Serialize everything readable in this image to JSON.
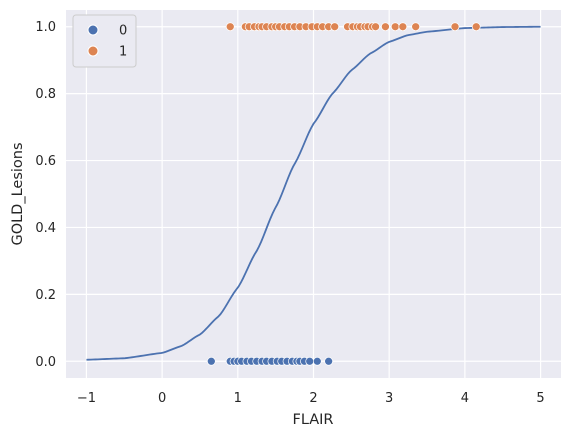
{
  "chart_data": {
    "type": "scatter",
    "xlabel": "FLAIR",
    "ylabel": "GOLD_Lesions",
    "xlim": [
      -1.27,
      5.27
    ],
    "ylim": [
      -0.05,
      1.05
    ],
    "xticks": [
      -1,
      0,
      1,
      2,
      3,
      4,
      5
    ],
    "yticks": [
      0.0,
      0.2,
      0.4,
      0.6,
      0.8,
      1.0
    ],
    "xtick_labels": [
      "−1",
      "0",
      "1",
      "2",
      "3",
      "4",
      "5"
    ],
    "ytick_labels": [
      "0.0",
      "0.2",
      "0.4",
      "0.6",
      "0.8",
      "1.0"
    ],
    "grid": true,
    "background": "#eaeaf2",
    "legend": {
      "placement": "top-left",
      "entries": [
        {
          "label": "0",
          "color": "#4c72b0"
        },
        {
          "label": "1",
          "color": "#dd8452"
        }
      ]
    },
    "series": [
      {
        "name": "0",
        "color": "#4c72b0",
        "points": [
          [
            0.65,
            0
          ],
          [
            0.9,
            0
          ],
          [
            0.95,
            0
          ],
          [
            1.0,
            0
          ],
          [
            1.05,
            0
          ],
          [
            1.12,
            0
          ],
          [
            1.18,
            0
          ],
          [
            1.25,
            0
          ],
          [
            1.32,
            0
          ],
          [
            1.38,
            0
          ],
          [
            1.45,
            0
          ],
          [
            1.52,
            0
          ],
          [
            1.58,
            0
          ],
          [
            1.65,
            0
          ],
          [
            1.72,
            0
          ],
          [
            1.78,
            0
          ],
          [
            1.82,
            0
          ],
          [
            1.88,
            0
          ],
          [
            1.95,
            0
          ],
          [
            2.05,
            0
          ],
          [
            2.2,
            0
          ]
        ]
      },
      {
        "name": "1",
        "color": "#dd8452",
        "points": [
          [
            0.9,
            1
          ],
          [
            1.1,
            1
          ],
          [
            1.15,
            1
          ],
          [
            1.22,
            1
          ],
          [
            1.28,
            1
          ],
          [
            1.32,
            1
          ],
          [
            1.38,
            1
          ],
          [
            1.45,
            1
          ],
          [
            1.5,
            1
          ],
          [
            1.55,
            1
          ],
          [
            1.62,
            1
          ],
          [
            1.68,
            1
          ],
          [
            1.75,
            1
          ],
          [
            1.82,
            1
          ],
          [
            1.9,
            1
          ],
          [
            1.98,
            1
          ],
          [
            2.05,
            1
          ],
          [
            2.12,
            1
          ],
          [
            2.2,
            1
          ],
          [
            2.28,
            1
          ],
          [
            2.45,
            1
          ],
          [
            2.52,
            1
          ],
          [
            2.58,
            1
          ],
          [
            2.62,
            1
          ],
          [
            2.68,
            1
          ],
          [
            2.72,
            1
          ],
          [
            2.78,
            1
          ],
          [
            2.82,
            1
          ],
          [
            2.95,
            1
          ],
          [
            3.08,
            1
          ],
          [
            3.18,
            1
          ],
          [
            3.35,
            1
          ],
          [
            3.87,
            1
          ],
          [
            4.15,
            1
          ]
        ]
      }
    ],
    "curve": {
      "type": "logistic",
      "color": "#4c72b0",
      "x": [
        -1,
        -0.5,
        0,
        0.25,
        0.5,
        0.75,
        1,
        1.25,
        1.5,
        1.75,
        2,
        2.25,
        2.5,
        2.75,
        3,
        3.25,
        3.5,
        4,
        4.5,
        5
      ],
      "y": [
        0.0045,
        0.009,
        0.025,
        0.045,
        0.08,
        0.135,
        0.22,
        0.33,
        0.46,
        0.59,
        0.71,
        0.8,
        0.87,
        0.92,
        0.955,
        0.975,
        0.985,
        0.996,
        0.999,
        1.0
      ]
    }
  }
}
